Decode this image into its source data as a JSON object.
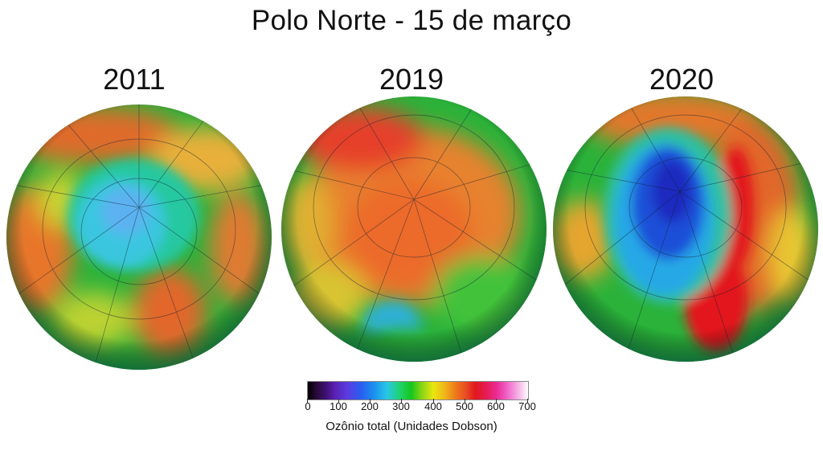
{
  "title": "Polo Norte - 15 de março",
  "panels": [
    {
      "year": "2011"
    },
    {
      "year": "2019"
    },
    {
      "year": "2020"
    }
  ],
  "colorbar": {
    "ticks": [
      "0",
      "100",
      "200",
      "300",
      "400",
      "500",
      "600",
      "700"
    ],
    "label": "Ozônio total (Unidades Dobson)",
    "colors": [
      "#000000",
      "#5a1fb0",
      "#2a5df0",
      "#28c7e6",
      "#16c61c",
      "#e9e60f",
      "#ee7a1c",
      "#e2171d",
      "#ea2d96",
      "#ffffff"
    ]
  }
}
